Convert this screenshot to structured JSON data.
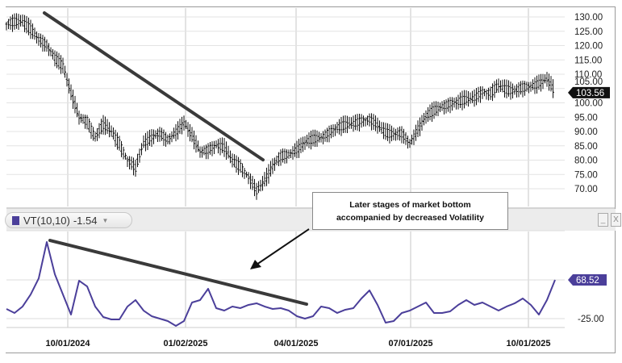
{
  "chart_data": [
    {
      "type": "ohlc",
      "title": "",
      "x_step": "approx 1 week per point",
      "values": [
        127.5,
        128,
        128.5,
        126,
        122,
        120,
        116,
        113,
        103,
        95,
        94,
        88,
        92,
        90,
        86,
        80,
        77,
        86,
        88,
        89,
        87,
        90,
        93,
        88,
        83,
        84,
        85,
        84,
        80,
        78,
        74,
        69,
        73,
        78,
        81,
        82,
        84,
        86,
        87,
        88,
        90,
        91,
        92,
        93,
        94,
        94,
        92,
        90,
        89,
        89,
        86,
        91,
        95,
        97,
        99,
        100,
        100,
        101,
        102,
        104,
        103,
        106,
        105,
        104,
        105,
        106,
        107,
        108,
        103.56
      ],
      "yticks": [
        "130.00",
        "125.00",
        "120.00",
        "115.00",
        "110.00",
        "105.00",
        "100.00",
        "95.00",
        "90.00",
        "85.00",
        "80.00",
        "75.00",
        "70.00"
      ],
      "ylim": [
        67,
        132
      ],
      "last_value_label": "103.56",
      "trendline": {
        "from": [
          4.7,
          131.4
        ],
        "to": [
          31.8,
          80.1
        ]
      }
    },
    {
      "type": "line",
      "name": "VT(10,10)",
      "legend_label": "VT(10,10)",
      "legend_value": "-1.54",
      "color": "#4b3f9a",
      "values": [
        -1.7,
        -11.4,
        4.2,
        33.4,
        72.4,
        160.2,
        82.2,
        33.4,
        -15.3,
        66.6,
        52.9,
        4.2,
        -21.2,
        -27,
        -27,
        4.2,
        19.8,
        -5.6,
        -19.2,
        -25.1,
        -30.9,
        -42.6,
        -30.9,
        13.9,
        19.8,
        47.1,
        0.3,
        -5.6,
        4.2,
        0.3,
        8.1,
        12,
        4.2,
        -1.7,
        0.3,
        -5.6,
        -19.2,
        -25.1,
        -19.2,
        4.2,
        0.3,
        -11.4,
        -3.6,
        0.3,
        23.7,
        43.2,
        8.1,
        -34.8,
        -30.9,
        -11.4,
        -5.6,
        4.2,
        13.9,
        -11.4,
        -11.4,
        -7.5,
        8.1,
        19.8,
        8.1,
        13.9,
        4.2,
        -5.6,
        4.2,
        12,
        23.7,
        8.1,
        -15.3,
        20,
        68.52
      ],
      "yticks": [
        "68.52",
        "-25.00"
      ],
      "last_value_label": "68.52",
      "trendline": {
        "from": [
          5.4,
          164
        ],
        "to": [
          37.2,
          10
        ]
      }
    }
  ],
  "xticks": [
    {
      "label": "10/01/2024",
      "index": 7.6
    },
    {
      "label": "01/02/2025",
      "index": 22.2
    },
    {
      "label": "04/01/2025",
      "index": 35.9
    },
    {
      "label": "07/01/2025",
      "index": 50.1
    },
    {
      "label": "10/01/2025",
      "index": 64.7
    }
  ],
  "annotation": {
    "line1": "Later stages of market bottom",
    "line2": "accompanied by decreased Volatility"
  },
  "panel_buttons": {
    "minimize": "_",
    "close": "X"
  }
}
